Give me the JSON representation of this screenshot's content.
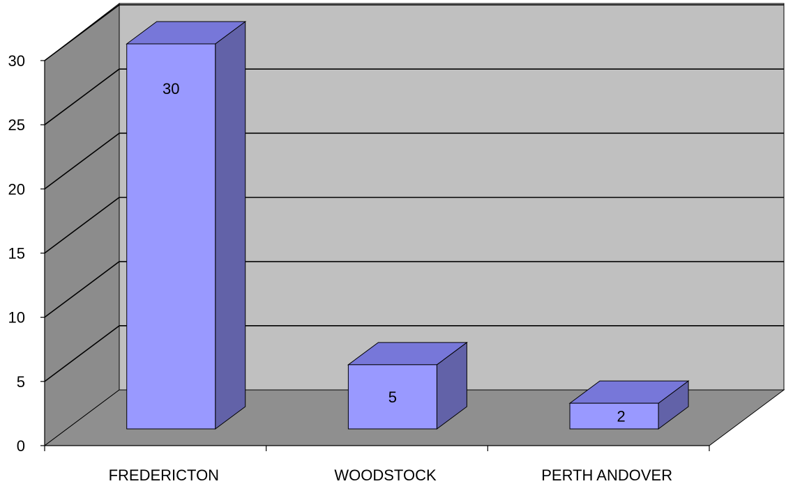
{
  "chart_data": {
    "type": "bar",
    "style": "3d-column",
    "categories": [
      "FREDERICTON",
      "WOODSTOCK",
      "PERTH ANDOVER"
    ],
    "values": [
      30,
      5,
      2
    ],
    "data_labels": [
      "30",
      "5",
      "2"
    ],
    "ylim": [
      0,
      30
    ],
    "yticks": [
      0,
      5,
      10,
      15,
      20,
      25,
      30
    ],
    "ytick_labels": [
      "0",
      "5",
      "10",
      "15",
      "20",
      "25",
      "30"
    ],
    "grid": true,
    "legend": "none",
    "colors": {
      "bar_front": "#9999ff",
      "bar_top": "#7777d9",
      "bar_side": "#6262a8",
      "back_wall": "#c0c0c0",
      "side_wall": "#8c8c8c",
      "floor": "#8f8f8f",
      "gridline": "#000000"
    }
  }
}
